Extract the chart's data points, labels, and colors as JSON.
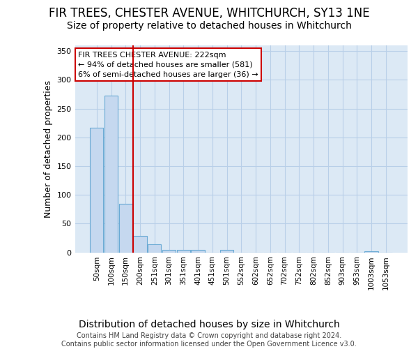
{
  "title1": "FIR TREES, CHESTER AVENUE, WHITCHURCH, SY13 1NE",
  "title2": "Size of property relative to detached houses in Whitchurch",
  "xlabel": "Distribution of detached houses by size in Whitchurch",
  "ylabel": "Number of detached properties",
  "footnote": "Contains HM Land Registry data © Crown copyright and database right 2024.\nContains public sector information licensed under the Open Government Licence v3.0.",
  "bar_labels": [
    "50sqm",
    "100sqm",
    "150sqm",
    "200sqm",
    "251sqm",
    "301sqm",
    "351sqm",
    "401sqm",
    "451sqm",
    "501sqm",
    "552sqm",
    "602sqm",
    "652sqm",
    "702sqm",
    "752sqm",
    "802sqm",
    "852sqm",
    "903sqm",
    "953sqm",
    "1003sqm",
    "1053sqm"
  ],
  "bar_values": [
    217,
    272,
    84,
    29,
    14,
    4,
    4,
    4,
    0,
    4,
    0,
    0,
    0,
    0,
    0,
    0,
    0,
    0,
    0,
    2,
    0
  ],
  "bar_color": "#c5d8ef",
  "bar_edge_color": "#6aaad4",
  "fig_bg_color": "#ffffff",
  "axes_bg_color": "#dce9f5",
  "grid_color": "#b8cfe8",
  "annotation_box_facecolor": "#ffffff",
  "annotation_box_edgecolor": "#cc0000",
  "vline_color": "#cc0000",
  "annotation_text": "FIR TREES CHESTER AVENUE: 222sqm\n← 94% of detached houses are smaller (581)\n6% of semi-detached houses are larger (36) →",
  "ylim": [
    0,
    360
  ],
  "yticks": [
    0,
    50,
    100,
    150,
    200,
    250,
    300,
    350
  ],
  "vline_pos": 2.5,
  "annotation_fontsize": 8,
  "title1_fontsize": 12,
  "title2_fontsize": 10,
  "xlabel_fontsize": 10,
  "ylabel_fontsize": 9,
  "footnote_fontsize": 7
}
